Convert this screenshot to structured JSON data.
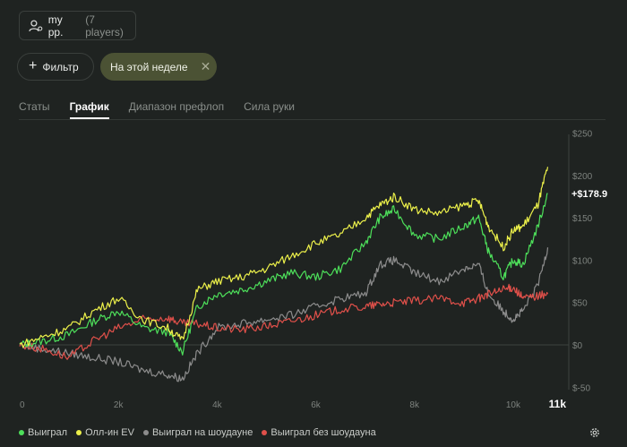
{
  "header": {
    "player_name": "my pp.",
    "player_count": "(7 players)"
  },
  "filters": {
    "filter_label": "Фильтр",
    "active_chip": "На этой неделе"
  },
  "tabs": [
    {
      "label": "Статы",
      "active": false
    },
    {
      "label": "График",
      "active": true
    },
    {
      "label": "Диапазон префлоп",
      "active": false
    },
    {
      "label": "Сила руки",
      "active": false
    }
  ],
  "final_label": "+$178.9",
  "colors": {
    "background": "#1f2321",
    "won": "#4ddf5a",
    "allin_ev": "#ecf04a",
    "showdown": "#8c8c8c",
    "non_showdown": "#e0504a",
    "chip_bg": "#4b5234"
  },
  "chart_data": {
    "type": "line",
    "xlim": [
      0,
      11000
    ],
    "ylim": [
      -50,
      250
    ],
    "x_ticks": [
      "0",
      "2k",
      "4k",
      "6k",
      "8k",
      "10k",
      "11k"
    ],
    "y_ticks": [
      "$250",
      "$200",
      "$150",
      "$100",
      "$50",
      "$0",
      "$-50"
    ],
    "grid": false,
    "legend_position": "bottom-left",
    "series": [
      {
        "name": "Выиграл",
        "color": "#4ddf5a",
        "x": [
          0,
          500,
          1000,
          1500,
          2000,
          2500,
          3000,
          3300,
          3600,
          4000,
          4500,
          5000,
          5500,
          6000,
          6500,
          7000,
          7300,
          7600,
          8000,
          8500,
          9000,
          9300,
          9500,
          9800,
          10000,
          10200,
          10500,
          10700
        ],
        "y": [
          0,
          5,
          12,
          28,
          40,
          20,
          15,
          -8,
          45,
          60,
          65,
          75,
          85,
          80,
          90,
          120,
          150,
          160,
          130,
          125,
          140,
          150,
          110,
          80,
          100,
          95,
          140,
          178.9
        ]
      },
      {
        "name": "Олл-ин EV",
        "color": "#ecf04a",
        "x": [
          0,
          500,
          1000,
          1500,
          2000,
          2500,
          3000,
          3300,
          3600,
          4000,
          4500,
          5000,
          5500,
          6000,
          6500,
          7000,
          7300,
          7600,
          8000,
          8500,
          9000,
          9300,
          9500,
          9800,
          10000,
          10200,
          10500,
          10700
        ],
        "y": [
          0,
          10,
          20,
          40,
          55,
          30,
          20,
          5,
          65,
          75,
          80,
          90,
          105,
          120,
          130,
          150,
          165,
          175,
          160,
          155,
          165,
          170,
          140,
          115,
          135,
          140,
          165,
          210
        ]
      },
      {
        "name": "Выиграл на шоудауне",
        "color": "#8c8c8c",
        "x": [
          0,
          500,
          1000,
          1500,
          2000,
          2500,
          3000,
          3300,
          3600,
          4000,
          4500,
          5000,
          5500,
          6000,
          6500,
          7000,
          7300,
          7600,
          8000,
          8500,
          9000,
          9300,
          9500,
          9800,
          10000,
          10200,
          10500,
          10700
        ],
        "y": [
          0,
          -5,
          -10,
          -15,
          -20,
          -30,
          -35,
          -40,
          -10,
          20,
          25,
          30,
          35,
          45,
          55,
          60,
          95,
          100,
          85,
          75,
          90,
          95,
          60,
          40,
          30,
          40,
          70,
          115
        ]
      },
      {
        "name": "Выиграл без шоудауна",
        "color": "#e0504a",
        "x": [
          0,
          500,
          1000,
          1500,
          2000,
          2500,
          3000,
          3300,
          3600,
          4000,
          4500,
          5000,
          5500,
          6000,
          6500,
          7000,
          7300,
          7600,
          8000,
          8500,
          9000,
          9300,
          9500,
          9800,
          10000,
          10200,
          10500,
          10700
        ],
        "y": [
          0,
          -5,
          -15,
          5,
          20,
          30,
          32,
          25,
          25,
          20,
          18,
          22,
          28,
          35,
          42,
          45,
          48,
          50,
          52,
          55,
          50,
          55,
          60,
          65,
          68,
          55,
          58,
          60
        ]
      }
    ]
  }
}
